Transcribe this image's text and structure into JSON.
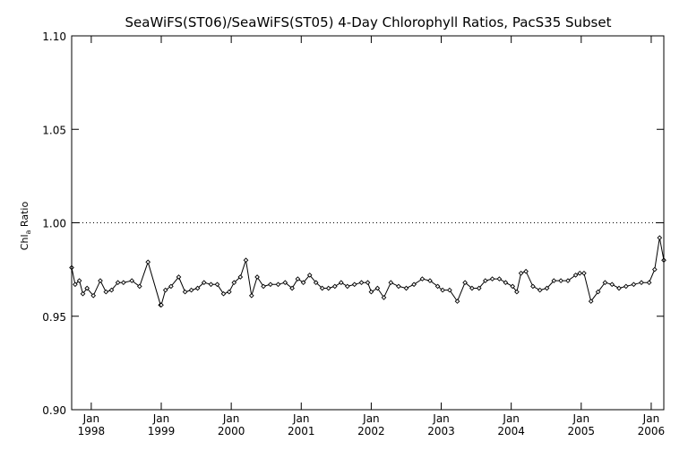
{
  "chart_data": {
    "type": "line",
    "title": "SeaWiFS(ST06)/SeaWiFS(ST05) 4-Day Chlorophyll Ratios, PacS35 Subset",
    "ylabel_main": "Chl",
    "ylabel_sub": "a",
    "ylabel_rest": " Ratio",
    "xlabel": "",
    "ylim": [
      0.9,
      1.1
    ],
    "xlim": [
      1997.72,
      2006.18
    ],
    "yticks": [
      {
        "value": 0.9,
        "label": "0.90"
      },
      {
        "value": 0.95,
        "label": "0.95"
      },
      {
        "value": 1.0,
        "label": "1.00"
      },
      {
        "value": 1.05,
        "label": "1.05"
      },
      {
        "value": 1.1,
        "label": "1.10"
      }
    ],
    "xticks": [
      {
        "value": 1998.0,
        "month": "Jan",
        "year": "1998"
      },
      {
        "value": 1999.0,
        "month": "Jan",
        "year": "1999"
      },
      {
        "value": 2000.0,
        "month": "Jan",
        "year": "2000"
      },
      {
        "value": 2001.0,
        "month": "Jan",
        "year": "2001"
      },
      {
        "value": 2002.0,
        "month": "Jan",
        "year": "2002"
      },
      {
        "value": 2003.0,
        "month": "Jan",
        "year": "2003"
      },
      {
        "value": 2004.0,
        "month": "Jan",
        "year": "2004"
      },
      {
        "value": 2005.0,
        "month": "Jan",
        "year": "2005"
      },
      {
        "value": 2006.0,
        "month": "Jan",
        "year": "2006"
      }
    ],
    "reference_line": {
      "value": 1.0,
      "style": "dotted"
    },
    "grid": false,
    "legend": "none",
    "series": [
      {
        "x": [
          1997.72,
          1997.77,
          1997.83,
          1997.88,
          1997.94,
          1998.03,
          1998.13,
          1998.21,
          1998.29,
          1998.38,
          1998.46,
          1998.58,
          1998.69,
          1998.81,
          1998.99,
          1999.0,
          1999.06,
          1999.14,
          1999.25,
          1999.34,
          1999.43,
          1999.52,
          1999.61,
          1999.71,
          1999.8,
          1999.89,
          1999.97,
          2000.04,
          2000.13,
          2000.21,
          2000.29,
          2000.37,
          2000.46,
          2000.56,
          2000.67,
          2000.77,
          2000.87,
          2000.95,
          2001.03,
          2001.12,
          2001.21,
          2001.3,
          2001.39,
          2001.48,
          2001.57,
          2001.66,
          2001.76,
          2001.86,
          2001.95,
          2002.0,
          2002.09,
          2002.18,
          2002.28,
          2002.39,
          2002.5,
          2002.61,
          2002.73,
          2002.84,
          2002.95,
          2003.02,
          2003.12,
          2003.23,
          2003.34,
          2003.44,
          2003.54,
          2003.63,
          2003.73,
          2003.83,
          2003.92,
          2004.02,
          2004.08,
          2004.14,
          2004.21,
          2004.31,
          2004.41,
          2004.51,
          2004.61,
          2004.71,
          2004.81,
          2004.92,
          2004.98,
          2005.04,
          2005.14,
          2005.24,
          2005.34,
          2005.44,
          2005.54,
          2005.64,
          2005.75,
          2005.86,
          2005.97,
          2006.05,
          2006.12,
          2006.18
        ],
        "values": [
          0.976,
          0.967,
          0.969,
          0.962,
          0.965,
          0.961,
          0.969,
          0.963,
          0.964,
          0.968,
          0.968,
          0.969,
          0.966,
          0.979,
          0.956,
          0.956,
          0.964,
          0.966,
          0.971,
          0.963,
          0.964,
          0.965,
          0.968,
          0.967,
          0.967,
          0.962,
          0.963,
          0.968,
          0.971,
          0.98,
          0.961,
          0.971,
          0.966,
          0.967,
          0.967,
          0.968,
          0.965,
          0.97,
          0.968,
          0.972,
          0.968,
          0.965,
          0.965,
          0.966,
          0.968,
          0.966,
          0.967,
          0.968,
          0.968,
          0.963,
          0.965,
          0.96,
          0.968,
          0.966,
          0.965,
          0.967,
          0.97,
          0.969,
          0.966,
          0.964,
          0.964,
          0.958,
          0.968,
          0.965,
          0.965,
          0.969,
          0.97,
          0.97,
          0.968,
          0.966,
          0.963,
          0.973,
          0.974,
          0.966,
          0.964,
          0.965,
          0.969,
          0.969,
          0.969,
          0.972,
          0.973,
          0.973,
          0.958,
          0.963,
          0.968,
          0.967,
          0.965,
          0.966,
          0.967,
          0.968,
          0.968,
          0.975,
          0.992,
          0.98
        ]
      }
    ]
  }
}
